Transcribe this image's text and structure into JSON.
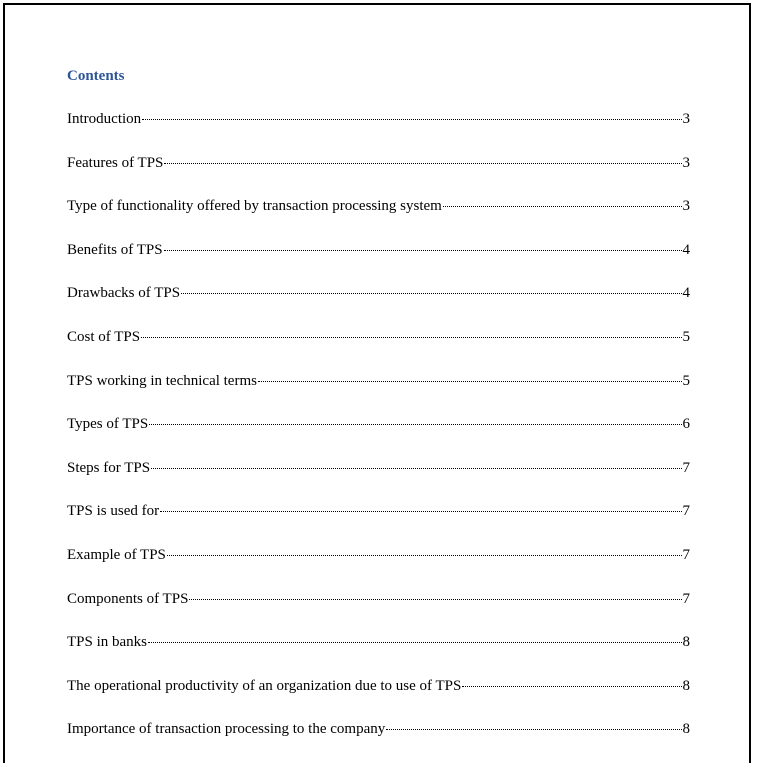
{
  "toc": {
    "title": "Contents",
    "entries": [
      {
        "label": "Introduction",
        "page": "3"
      },
      {
        "label": "Features of TPS",
        "page": "3"
      },
      {
        "label": "Type of functionality offered by transaction processing system",
        "page": "3"
      },
      {
        "label": "Benefits of TPS",
        "page": "4"
      },
      {
        "label": "Drawbacks of TPS",
        "page": "4"
      },
      {
        "label": "Cost of TPS",
        "page": "5"
      },
      {
        "label": "TPS working in technical terms",
        "page": "5"
      },
      {
        "label": "Types of TPS",
        "page": "6"
      },
      {
        "label": "Steps for TPS",
        "page": "7"
      },
      {
        "label": "TPS is used for",
        "page": "7"
      },
      {
        "label": "Example of TPS",
        "page": "7"
      },
      {
        "label": "Components of TPS",
        "page": "7"
      },
      {
        "label": "TPS in banks",
        "page": "8"
      },
      {
        "label": "The operational productivity of an organization due to use of TPS",
        "page": "8"
      },
      {
        "label": "Importance of transaction processing to the company",
        "page": "8"
      }
    ]
  }
}
